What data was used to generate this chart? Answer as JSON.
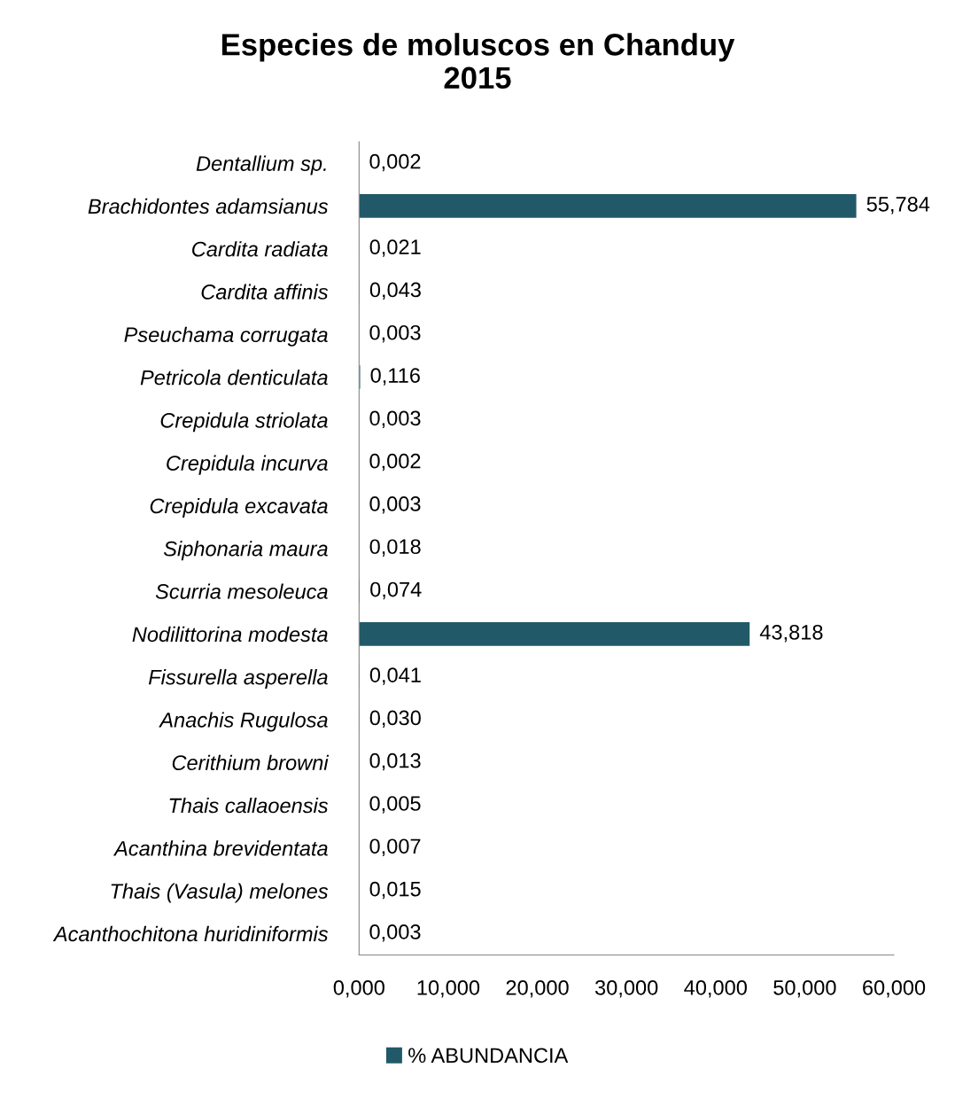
{
  "chart_data": {
    "type": "bar",
    "orientation": "horizontal",
    "title": "Especies de moluscos en Chanduy\n2015",
    "categories": [
      "Dentallium sp.",
      "Brachidontes adamsianus",
      "Cardita radiata",
      "Cardita affinis",
      "Pseuchama corrugata",
      "Petricola denticulata",
      "Crepidula striolata",
      "Crepidula incurva",
      "Crepidula excavata",
      "Siphonaria maura",
      "Scurria mesoleuca",
      "Nodilittorina modesta",
      "Fissurella asperella",
      "Anachis Rugulosa",
      "Cerithium browni",
      "Thais callaoensis",
      "Acanthina brevidentata",
      "Thais (Vasula) melones",
      "Acanthochitona huridiniformis"
    ],
    "series": [
      {
        "name": "% ABUNDANCIA",
        "color": "#215968",
        "values": [
          0.002,
          55.784,
          0.021,
          0.043,
          0.003,
          0.116,
          0.003,
          0.002,
          0.003,
          0.018,
          0.074,
          43.818,
          0.041,
          0.03,
          0.013,
          0.005,
          0.007,
          0.015,
          0.003
        ],
        "value_labels": [
          "0,002",
          "55,784",
          "0,021",
          "0,043",
          "0,003",
          "0,116",
          "0,003",
          "0,002",
          "0,003",
          "0,018",
          "0,074",
          "43,818",
          "0,041",
          "0,030",
          "0,013",
          "0,005",
          "0,007",
          "0,015",
          "0,003"
        ]
      }
    ],
    "xlim": [
      0,
      60
    ],
    "xticks": [
      {
        "value": 0,
        "label": "0,000"
      },
      {
        "value": 10,
        "label": "10,000"
      },
      {
        "value": 20,
        "label": "20,000"
      },
      {
        "value": 30,
        "label": "30,000"
      },
      {
        "value": 40,
        "label": "40,000"
      },
      {
        "value": 50,
        "label": "50,000"
      },
      {
        "value": 60,
        "label": "60,000"
      }
    ],
    "grid": false,
    "legend": "bottom"
  }
}
